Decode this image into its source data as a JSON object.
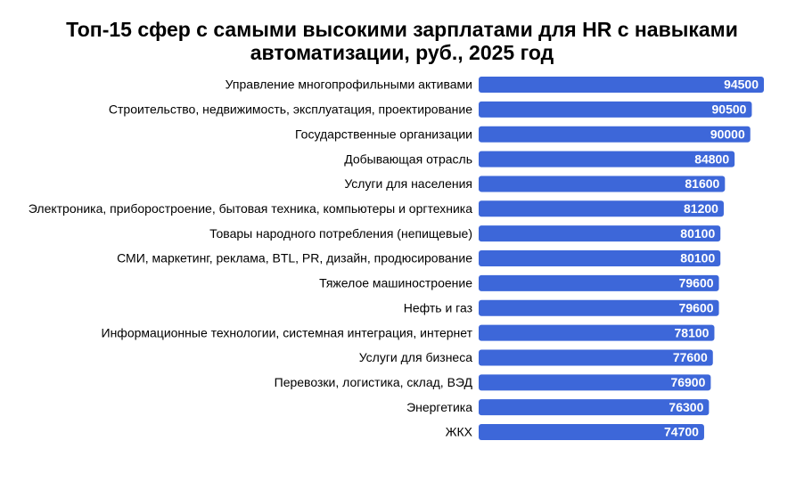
{
  "chart_data": {
    "type": "barh",
    "title": "Топ-15 сфер с самыми высокими зарплатами для HR с навыками автоматизации, руб., 2025 год",
    "categories": [
      "Управление многопрофильными активами",
      "Строительство, недвижимость, эксплуатация, проектирование",
      "Государственные организации",
      "Добывающая отрасль",
      "Услуги для населения",
      "Электроника, приборостроение, бытовая техника, компьютеры и оргтехника",
      "Товары народного потребления (непищевые)",
      "СМИ, маркетинг, реклама, BTL, PR, дизайн, продюсирование",
      "Тяжелое машиностроение",
      "Нефть и газ",
      "Информационные технологии, системная интеграция, интернет",
      "Услуги для бизнеса",
      "Перевозки, логистика, склад, ВЭД",
      "Энергетика",
      "ЖКХ"
    ],
    "values": [
      94500,
      90500,
      90000,
      84800,
      81600,
      81200,
      80100,
      80100,
      79600,
      79600,
      78100,
      77600,
      76900,
      76300,
      74700
    ],
    "color": "#3d67d9"
  }
}
